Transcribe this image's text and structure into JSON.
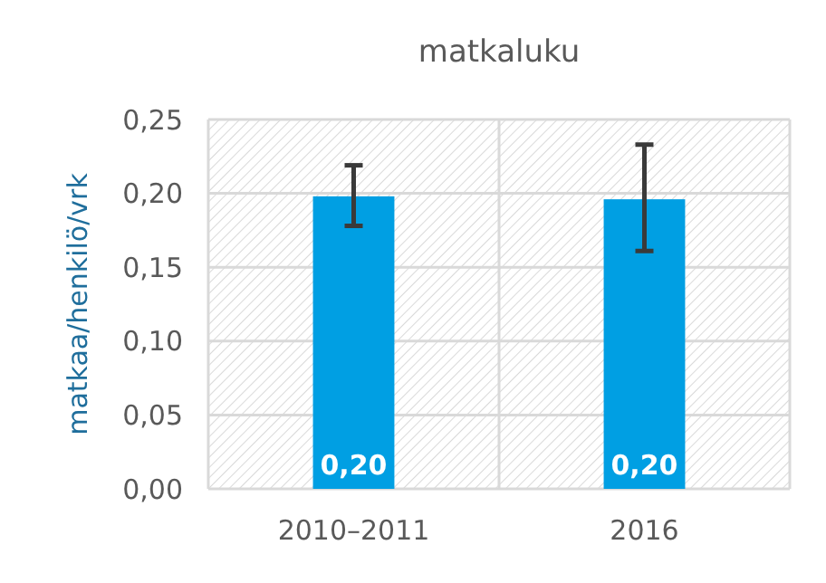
{
  "chart_data": {
    "type": "bar",
    "title": "matkaluku",
    "ylabel": "matkaa/henkilö/vrk",
    "categories": [
      "2010–2011",
      "2016"
    ],
    "values": [
      0.198,
      0.196
    ],
    "color": "#009fe3",
    "errors": [
      [
        0.178,
        0.219
      ],
      [
        0.161,
        0.233
      ]
    ],
    "value_labels": [
      "0,20",
      "0,20"
    ],
    "ylim": [
      0,
      0.25
    ],
    "yticks": [
      {
        "value": 0,
        "label": "0,00"
      },
      {
        "value": 0.05,
        "label": "0,05"
      },
      {
        "value": 0.1,
        "label": "0,10"
      },
      {
        "value": 0.15,
        "label": "0,15"
      },
      {
        "value": 0.2,
        "label": "0,20"
      },
      {
        "value": 0.25,
        "label": "0,25"
      }
    ],
    "grid": true
  }
}
